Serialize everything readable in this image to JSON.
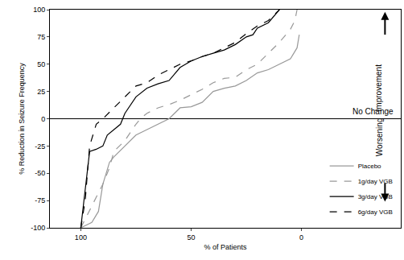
{
  "chart_data": {
    "type": "line",
    "x_label": "% of Patients",
    "y_label": "% Reduction in Seizure Frequency",
    "xlim": [
      114,
      -45
    ],
    "xticks": [
      100,
      50,
      0
    ],
    "ylim": [
      -100,
      100
    ],
    "yticks": [
      -100,
      -75,
      -50,
      -25,
      0,
      25,
      50,
      75,
      100
    ],
    "grid": false,
    "legend": "lower right",
    "annotations": [
      "Improvement",
      "No Change",
      "Worsening"
    ],
    "series": [
      {
        "name": "Placebo",
        "color": "#999999",
        "line_style": "solid",
        "x": [
          100,
          95,
          92,
          90,
          87,
          85,
          80,
          75,
          70,
          65,
          60,
          55,
          50,
          45,
          40,
          35,
          30,
          25,
          20,
          15,
          10,
          5,
          2,
          1
        ],
        "values": [
          -100,
          -95,
          -85,
          -60,
          -40,
          -35,
          -25,
          -15,
          -10,
          -5,
          0,
          10,
          11,
          15,
          25,
          28,
          30,
          35,
          42,
          45,
          50,
          55,
          65,
          77
        ]
      },
      {
        "name": "1g/day VGB",
        "color": "#999999",
        "line_style": "dash",
        "x": [
          100,
          90,
          87,
          85,
          80,
          75,
          73,
          70,
          65,
          60,
          55,
          50,
          45,
          40,
          35,
          30,
          25,
          20,
          15,
          10,
          5,
          3,
          2
        ],
        "values": [
          -100,
          -60,
          -45,
          -30,
          -20,
          -5,
          0,
          5,
          10,
          13,
          17,
          22,
          27,
          33,
          37,
          38,
          45,
          50,
          60,
          70,
          82,
          90,
          100
        ]
      },
      {
        "name": "3g/day VGB",
        "color": "#000000",
        "line_style": "solid",
        "x": [
          100,
          97,
          96,
          93,
          90,
          88,
          85,
          82,
          80,
          75,
          70,
          65,
          60,
          55,
          50,
          45,
          40,
          35,
          30,
          25,
          22,
          20,
          15,
          10
        ],
        "values": [
          -100,
          -50,
          -30,
          -28,
          -25,
          -15,
          -10,
          -5,
          5,
          20,
          28,
          32,
          35,
          47,
          53,
          57,
          60,
          63,
          68,
          75,
          77,
          83,
          88,
          100
        ]
      },
      {
        "name": "6g/day VGB",
        "color": "#000000",
        "line_style": "dash",
        "x": [
          100,
          98,
          96,
          93,
          90,
          85,
          80,
          75,
          70,
          65,
          60,
          55,
          50,
          45,
          40,
          35,
          30,
          25,
          20,
          15,
          10
        ],
        "values": [
          -100,
          -75,
          -25,
          -5,
          0,
          10,
          20,
          30,
          33,
          40,
          45,
          50,
          53,
          57,
          60,
          65,
          70,
          78,
          85,
          90,
          100
        ]
      }
    ]
  }
}
